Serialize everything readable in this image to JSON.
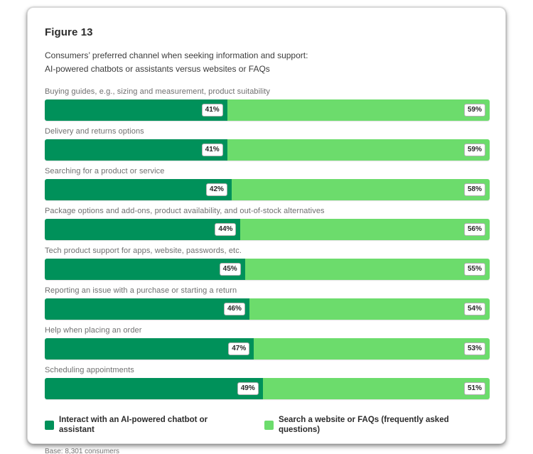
{
  "figure": {
    "label": "Figure 13",
    "subtitle_line1": "Consumers’ preferred channel when seeking information and support:",
    "subtitle_line2": "AI-powered chatbots or assistants versus websites or FAQs"
  },
  "chart_data": {
    "type": "bar",
    "orientation": "horizontal-stacked",
    "title": "Consumers’ preferred channel when seeking information and support: AI-powered chatbots or assistants versus websites or FAQs",
    "categories": [
      "Buying guides, e.g., sizing and measurement, product suitability",
      "Delivery and returns options",
      "Searching for a product or service",
      "Package options and add-ons, product availability, and out-of-stock alternatives",
      "Tech product support for apps, website, passwords, etc.",
      "Reporting an issue with a purchase or starting a return",
      "Help when placing an order",
      "Scheduling appointments"
    ],
    "series": [
      {
        "name": "Interact with an AI-powered chatbot or assistant",
        "color": "#00915a",
        "values": [
          41,
          41,
          42,
          44,
          45,
          46,
          47,
          49
        ]
      },
      {
        "name": "Search a website or FAQs (frequently asked questions)",
        "color": "#6cdc6c",
        "values": [
          59,
          59,
          58,
          56,
          55,
          54,
          53,
          51
        ]
      }
    ],
    "value_suffix": "%",
    "xlim": [
      0,
      100
    ],
    "grid": false,
    "legend_position": "bottom",
    "data_labels": "white chip at right end of each segment"
  },
  "base_note": "Base: 8,301 consumers"
}
